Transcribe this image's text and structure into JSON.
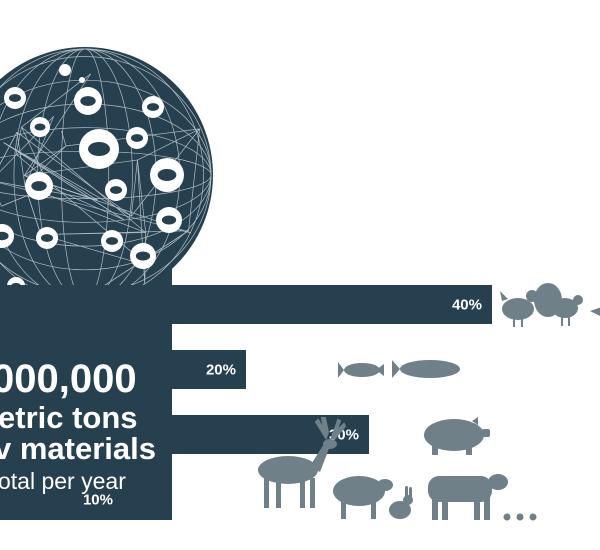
{
  "chart_data": {
    "type": "bar",
    "orientation": "horizontal",
    "categories": [
      "poultry",
      "fish",
      "pork",
      "other livestock"
    ],
    "values": [
      40,
      20,
      30,
      10
    ],
    "value_labels": [
      "40%",
      "20%",
      "30%",
      "10%"
    ],
    "xlim": [
      0,
      40
    ]
  },
  "headline": {
    "line1": "000,000",
    "line2": "etric tons",
    "line3": "v materials",
    "line4": "otal per year"
  },
  "ellipsis": "..."
}
